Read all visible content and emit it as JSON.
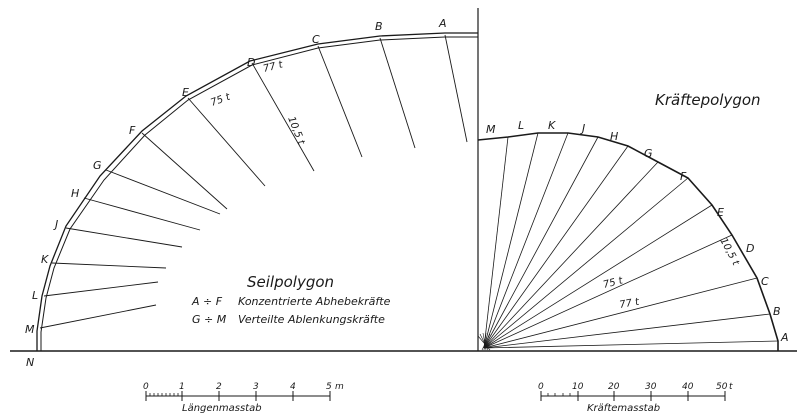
{
  "seilpolygon": {
    "title": "Seilpolygon",
    "point_labels": [
      "A",
      "B",
      "C",
      "D",
      "E",
      "F",
      "G",
      "H",
      "J",
      "K",
      "L",
      "M",
      "N"
    ],
    "force_labels": [
      "77 t",
      "75 t",
      "10,5 t"
    ],
    "legend": [
      {
        "key": "A ÷ F",
        "text": "Konzentrierte  Abhebekräfte"
      },
      {
        "key": "G ÷ M",
        "text": "Verteilte  Ablenkungskräfte"
      }
    ]
  },
  "kraeftepolygon": {
    "title": "Kräftepolygon",
    "point_labels": [
      "M",
      "L",
      "K",
      "J",
      "H",
      "G",
      "F",
      "E",
      "D",
      "C",
      "B",
      "A"
    ],
    "force_labels": [
      "10,5 t",
      "75 t",
      "77 t"
    ]
  },
  "length_scale": {
    "ticks": [
      "0",
      "1",
      "2",
      "3",
      "4",
      "5"
    ],
    "unit": "m",
    "label": "Längenmasstab"
  },
  "force_scale": {
    "ticks": [
      "0",
      "10",
      "20",
      "30",
      "40",
      "50"
    ],
    "unit": "t",
    "label": "Kräftemasstab"
  }
}
